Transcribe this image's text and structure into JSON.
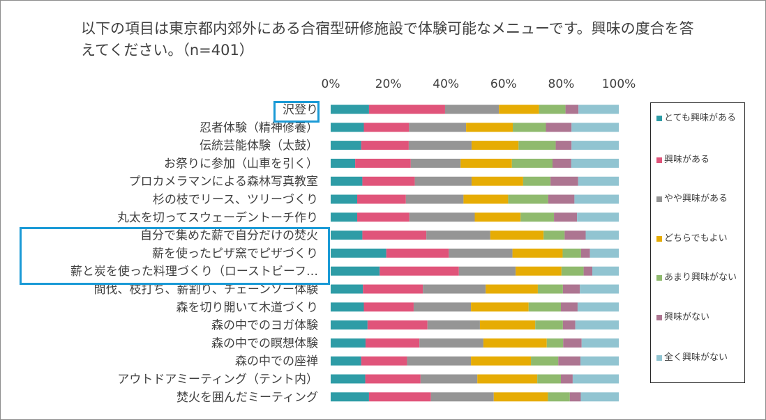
{
  "chart_data": {
    "type": "bar",
    "orientation": "horizontal",
    "stacked": "percent",
    "title": "以下の項目は東京都内郊外にある合宿型研修施設で体験可能なメニューです。興味の度合を答えてください。（n=401）",
    "xlim": [
      0,
      100
    ],
    "xticks": [
      "0%",
      "20%",
      "40%",
      "60%",
      "80%",
      "100%"
    ],
    "xtick_values": [
      0,
      20,
      40,
      60,
      80,
      100
    ],
    "legend_position": "right",
    "categories": [
      "沢登り",
      "忍者体験（精神修養）",
      "伝統芸能体験（太鼓）",
      "お祭りに参加（山車を引く）",
      "プロカメラマンによる森林写真教室",
      "杉の枝でリース、ツリーづくり",
      "丸太を切ってスウェーデントーチ作り",
      "自分で集めた薪で自分だけの焚火",
      "薪を使ったピザ窯でピザづくり",
      "薪と炭を使った料理づくり（ローストビーフ…",
      "間伐、枝打ち、薪割り、チェーンソー体験",
      "森を切り開いて木道づくり",
      "森の中でのヨガ体験",
      "森の中での瞑想体験",
      "森の中での座禅",
      "アウトドアミーティング（テント内）",
      "焚火を囲んだミーティング"
    ],
    "series": [
      {
        "name": "とても興味がある",
        "color": "#2e9ca6",
        "values": [
          13.3,
          11.5,
          10.6,
          8.5,
          11.0,
          9.2,
          9.2,
          11.0,
          19.3,
          17.0,
          11.2,
          11.5,
          12.8,
          12.1,
          10.6,
          12.0,
          13.3
        ]
      },
      {
        "name": "興味がある",
        "color": "#e0547a",
        "values": [
          26.4,
          15.7,
          16.5,
          19.3,
          18.2,
          16.9,
          18.1,
          22.2,
          21.7,
          27.5,
          20.8,
          17.3,
          20.8,
          18.7,
          15.9,
          19.2,
          21.5
        ]
      },
      {
        "name": "やや興味がある",
        "color": "#959595",
        "values": [
          18.7,
          19.8,
          21.8,
          17.3,
          19.7,
          20.0,
          22.7,
          22.2,
          22.1,
          19.7,
          21.8,
          19.9,
          18.2,
          22.2,
          22.2,
          19.7,
          21.8
        ]
      },
      {
        "name": "どちらでもよい",
        "color": "#e6ac04",
        "values": [
          13.9,
          16.2,
          16.3,
          17.8,
          17.9,
          15.5,
          15.9,
          18.5,
          17.4,
          15.9,
          18.1,
          20.0,
          19.2,
          22.0,
          20.8,
          20.8,
          18.8
        ]
      },
      {
        "name": "あまり興味がない",
        "color": "#8fba6e",
        "values": [
          9.2,
          11.5,
          12.9,
          14.1,
          9.5,
          13.9,
          11.6,
          7.3,
          6.4,
          7.7,
          8.7,
          11.2,
          9.6,
          5.7,
          9.5,
          8.2,
          7.6
        ]
      },
      {
        "name": "興味がない",
        "color": "#ad7591",
        "values": [
          4.5,
          8.9,
          5.5,
          6.5,
          9.6,
          9.1,
          8.0,
          7.3,
          3.1,
          3.0,
          5.9,
          5.8,
          4.3,
          6.4,
          7.7,
          4.1,
          3.8
        ]
      },
      {
        "name": "全く興味がない",
        "color": "#91c4d1",
        "values": [
          14.0,
          16.4,
          16.4,
          16.5,
          14.1,
          15.4,
          14.5,
          11.5,
          10.0,
          9.2,
          13.5,
          14.3,
          15.1,
          12.9,
          13.3,
          16.0,
          13.2
        ]
      }
    ],
    "highlighted_categories": [
      "沢登り",
      "自分で集めた薪で自分だけの焚火",
      "薪を使ったピザ窯でピザづくり",
      "薪と炭を使った料理づくり（ローストビーフ…"
    ]
  }
}
